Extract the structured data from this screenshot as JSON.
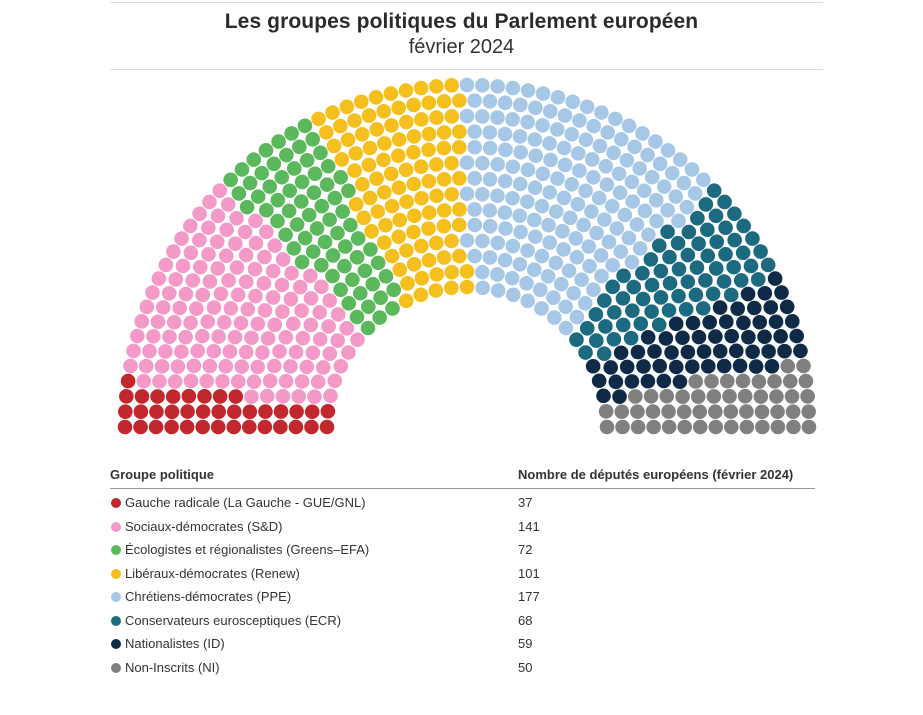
{
  "title": "Les groupes politiques du Parlement européen",
  "subtitle": "février 2024",
  "table": {
    "col1": "Groupe politique",
    "col2": "Nombre de députés européens (février 2024)"
  },
  "chart_data": {
    "type": "hemicycle",
    "title": "Les groupes politiques du Parlement européen",
    "subtitle": "février 2024",
    "groups": [
      {
        "name": "Gauche radicale (La Gauche - GUE/GNL)",
        "seats": 37,
        "color": "#c1272d"
      },
      {
        "name": "Sociaux-démocrates (S&D)",
        "seats": 141,
        "color": "#f49ac8"
      },
      {
        "name": "Écologistes et régionalistes (Greens–EFA)",
        "seats": 72,
        "color": "#5cb85c"
      },
      {
        "name": "Libéraux-démocrates (Renew)",
        "seats": 101,
        "color": "#f5bf1d"
      },
      {
        "name": "Chrétiens-démocrates (PPE)",
        "seats": 177,
        "color": "#a7c7e7"
      },
      {
        "name": "Conservateurs eurosceptiques (ECR)",
        "seats": 68,
        "color": "#1b6a80"
      },
      {
        "name": "Nationalistes (ID)",
        "seats": 59,
        "color": "#0e2a47"
      },
      {
        "name": "Non-Inscrits (NI)",
        "seats": 50,
        "color": "#808080"
      }
    ]
  }
}
